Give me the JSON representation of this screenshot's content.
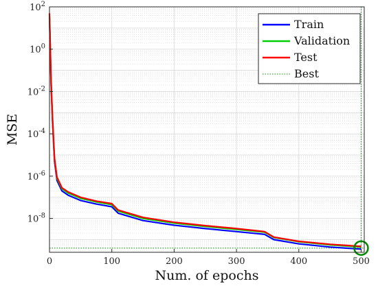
{
  "chart_data": {
    "type": "line",
    "xlabel": "Num. of epochs",
    "ylabel": "MSE",
    "xlim": [
      0,
      505
    ],
    "ylim_log10": [
      -9.6,
      2
    ],
    "log_y": true,
    "grid": true,
    "legend_position": "top-right",
    "x_ticks": [
      0,
      100,
      200,
      300,
      400,
      500
    ],
    "y_ticks": [
      {
        "exp": 2,
        "label": "10^2"
      },
      {
        "exp": 0,
        "label": "10^0"
      },
      {
        "exp": -2,
        "label": "10^-2"
      },
      {
        "exp": -4,
        "label": "10^-4"
      },
      {
        "exp": -6,
        "label": "10^-6"
      },
      {
        "exp": -8,
        "label": "10^-8"
      }
    ],
    "series": [
      {
        "name": "Train",
        "color": "#0000ff",
        "x": [
          0,
          1,
          2,
          3,
          5,
          8,
          12,
          20,
          30,
          50,
          75,
          100,
          110,
          150,
          200,
          250,
          300,
          345,
          360,
          400,
          450,
          500
        ],
        "y_log10": [
          1.5,
          0.3,
          -1.0,
          -2.0,
          -3.5,
          -5.3,
          -6.2,
          -6.7,
          -6.9,
          -7.15,
          -7.32,
          -7.45,
          -7.75,
          -8.1,
          -8.32,
          -8.48,
          -8.62,
          -8.75,
          -9.0,
          -9.2,
          -9.35,
          -9.45
        ]
      },
      {
        "name": "Validation",
        "color": "#00cc00",
        "x": [
          0,
          1,
          2,
          3,
          5,
          8,
          12,
          20,
          30,
          50,
          75,
          100,
          110,
          150,
          200,
          250,
          300,
          345,
          360,
          400,
          450,
          500
        ],
        "y_log10": [
          1.6,
          0.4,
          -0.9,
          -1.9,
          -3.4,
          -5.2,
          -6.1,
          -6.6,
          -6.8,
          -7.05,
          -7.22,
          -7.35,
          -7.65,
          -8.0,
          -8.22,
          -8.38,
          -8.52,
          -8.65,
          -8.9,
          -9.1,
          -9.25,
          -9.35
        ]
      },
      {
        "name": "Test",
        "color": "#ff0000",
        "x": [
          0,
          1,
          2,
          3,
          5,
          8,
          12,
          20,
          30,
          50,
          75,
          100,
          110,
          150,
          200,
          250,
          300,
          345,
          360,
          400,
          450,
          500
        ],
        "y_log10": [
          1.7,
          0.5,
          -0.8,
          -1.8,
          -3.3,
          -5.15,
          -6.05,
          -6.55,
          -6.75,
          -7.0,
          -7.18,
          -7.3,
          -7.6,
          -7.95,
          -8.18,
          -8.34,
          -8.48,
          -8.62,
          -8.88,
          -9.08,
          -9.22,
          -9.32
        ]
      }
    ],
    "best": {
      "name": "Best",
      "color": "#008800",
      "epoch": 500,
      "y_log10": -9.4
    }
  }
}
